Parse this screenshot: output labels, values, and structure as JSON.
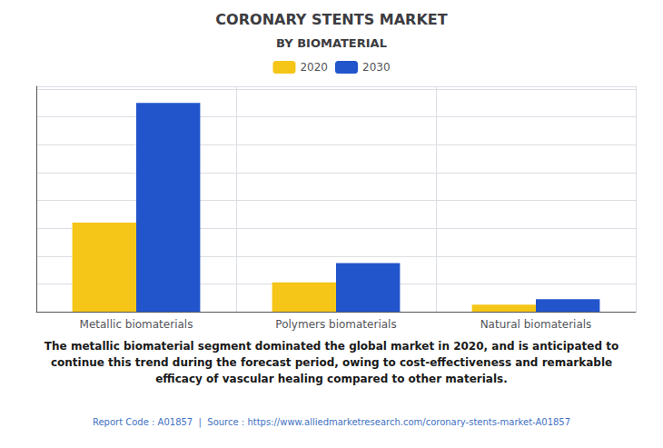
{
  "chart_data": {
    "type": "bar",
    "title": "CORONARY STENTS MARKET",
    "subtitle": "BY BIOMATERIAL",
    "categories": [
      "Metallic biomaterials",
      "Polymers biomaterials",
      "Natural biomaterials"
    ],
    "series": [
      {
        "name": "2020",
        "color": "#f5c518",
        "values": [
          3.2,
          1.05,
          0.25
        ]
      },
      {
        "name": "2030",
        "color": "#2255cc",
        "values": [
          7.5,
          1.75,
          0.45
        ]
      }
    ],
    "ylim": [
      0,
      8.1
    ],
    "yticks": [
      0,
      1,
      2,
      3,
      4,
      5,
      6,
      7,
      8
    ],
    "grid": true,
    "legend": "top",
    "tick_labels": "x",
    "annotations": [
      "The metallic biomaterial segment dominated the global market in 2020, and is anticipated to\ncontinue this trend during the forecast period, owing to cost-effectiveness and remarkable\nefficacy of vascular healing compared to other materials.",
      "Report Code : A01857  |  Source : https://www.alliedmarketresearch.com/coronary-stents-market-A01857"
    ]
  }
}
